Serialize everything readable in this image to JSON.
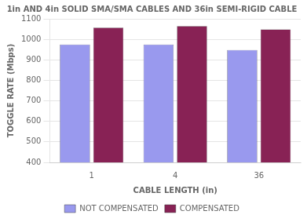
{
  "chart_data": {
    "type": "bar",
    "title": "1in AND 4in SOLID SMA/SMA CABLES AND 36in SEMI-RIGID CABLE",
    "xlabel": "CABLE LENGTH (in)",
    "ylabel": "TOGGLE RATE (Mbps)",
    "categories": [
      "1",
      "4",
      "36"
    ],
    "series": [
      {
        "name": "NOT COMPENSATED",
        "color": "#9999EE",
        "values": [
          975,
          975,
          948
        ]
      },
      {
        "name": "COMPENSATED",
        "color": "#882255",
        "values": [
          1057,
          1065,
          1048
        ]
      }
    ],
    "ylim": [
      400,
      1100
    ],
    "yticks": [
      400,
      500,
      600,
      700,
      800,
      900,
      1000,
      1100
    ],
    "grid": true,
    "legend": "bottom"
  }
}
